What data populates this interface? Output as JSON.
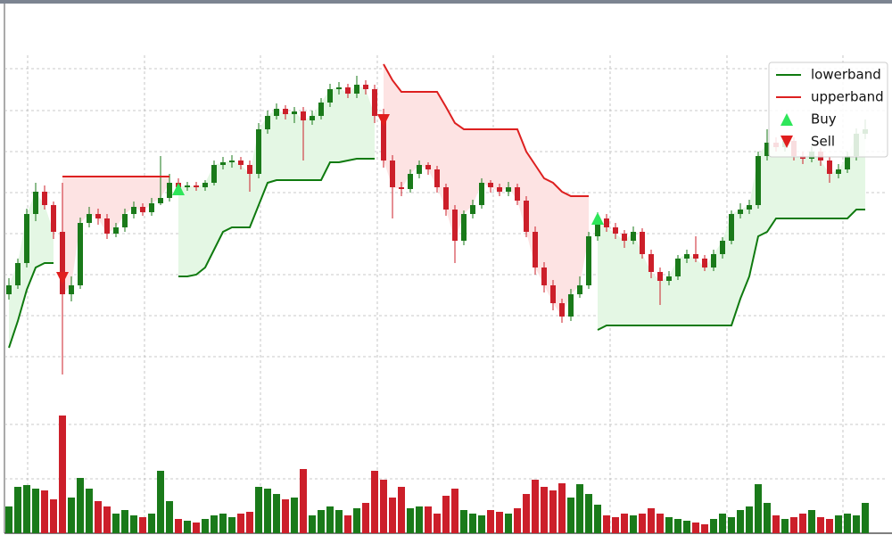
{
  "chart_data": {
    "type": "candlestick",
    "ohlc": [
      [
        270,
        288,
        264,
        280
      ],
      [
        280,
        310,
        276,
        305
      ],
      [
        305,
        366,
        300,
        360
      ],
      [
        360,
        395,
        352,
        385
      ],
      [
        385,
        392,
        365,
        370
      ],
      [
        370,
        374,
        332,
        340
      ],
      [
        340,
        395,
        180,
        270
      ],
      [
        270,
        290,
        262,
        280
      ],
      [
        280,
        356,
        276,
        350
      ],
      [
        350,
        368,
        345,
        360
      ],
      [
        360,
        366,
        348,
        355
      ],
      [
        355,
        360,
        332,
        338
      ],
      [
        338,
        350,
        334,
        345
      ],
      [
        345,
        366,
        340,
        360
      ],
      [
        360,
        374,
        355,
        368
      ],
      [
        368,
        372,
        358,
        362
      ],
      [
        362,
        378,
        358,
        372
      ],
      [
        372,
        425,
        370,
        378
      ],
      [
        378,
        405,
        374,
        395
      ],
      [
        395,
        400,
        384,
        390
      ],
      [
        390,
        396,
        386,
        392
      ],
      [
        392,
        396,
        386,
        390
      ],
      [
        390,
        398,
        386,
        395
      ],
      [
        395,
        420,
        392,
        415
      ],
      [
        415,
        424,
        410,
        418
      ],
      [
        418,
        426,
        412,
        420
      ],
      [
        420,
        424,
        410,
        415
      ],
      [
        415,
        420,
        385,
        405
      ],
      [
        405,
        462,
        400,
        455
      ],
      [
        455,
        476,
        450,
        470
      ],
      [
        470,
        484,
        466,
        478
      ],
      [
        478,
        482,
        466,
        472
      ],
      [
        472,
        480,
        462,
        475
      ],
      [
        475,
        480,
        420,
        465
      ],
      [
        465,
        476,
        460,
        470
      ],
      [
        470,
        490,
        466,
        485
      ],
      [
        485,
        506,
        480,
        500
      ],
      [
        500,
        508,
        494,
        502
      ],
      [
        502,
        506,
        490,
        495
      ],
      [
        495,
        515,
        490,
        505
      ],
      [
        505,
        510,
        494,
        500
      ],
      [
        500,
        505,
        462,
        470
      ],
      [
        470,
        478,
        412,
        420
      ],
      [
        420,
        426,
        355,
        390
      ],
      [
        390,
        396,
        380,
        388
      ],
      [
        388,
        410,
        384,
        405
      ],
      [
        405,
        420,
        400,
        415
      ],
      [
        415,
        418,
        404,
        410
      ],
      [
        410,
        414,
        384,
        390
      ],
      [
        390,
        394,
        358,
        365
      ],
      [
        365,
        370,
        305,
        330
      ],
      [
        330,
        364,
        325,
        360
      ],
      [
        360,
        376,
        355,
        370
      ],
      [
        370,
        400,
        366,
        395
      ],
      [
        395,
        398,
        384,
        390
      ],
      [
        390,
        394,
        380,
        385
      ],
      [
        385,
        396,
        380,
        390
      ],
      [
        390,
        394,
        370,
        375
      ],
      [
        375,
        380,
        334,
        340
      ],
      [
        340,
        346,
        292,
        300
      ],
      [
        300,
        306,
        272,
        280
      ],
      [
        280,
        286,
        252,
        260
      ],
      [
        260,
        265,
        238,
        245
      ],
      [
        245,
        276,
        240,
        270
      ],
      [
        270,
        290,
        266,
        280
      ],
      [
        280,
        340,
        276,
        335
      ],
      [
        335,
        362,
        330,
        355
      ],
      [
        355,
        360,
        340,
        345
      ],
      [
        345,
        350,
        332,
        338
      ],
      [
        338,
        342,
        322,
        330
      ],
      [
        330,
        346,
        326,
        340
      ],
      [
        340,
        344,
        310,
        315
      ],
      [
        315,
        320,
        288,
        295
      ],
      [
        295,
        300,
        258,
        285
      ],
      [
        285,
        296,
        280,
        290
      ],
      [
        290,
        314,
        286,
        310
      ],
      [
        310,
        320,
        305,
        315
      ],
      [
        315,
        335,
        306,
        310
      ],
      [
        310,
        314,
        296,
        300
      ],
      [
        300,
        320,
        296,
        315
      ],
      [
        315,
        334,
        310,
        330
      ],
      [
        330,
        364,
        326,
        360
      ],
      [
        360,
        372,
        355,
        365
      ],
      [
        365,
        376,
        360,
        370
      ],
      [
        370,
        430,
        366,
        425
      ],
      [
        425,
        455,
        420,
        440
      ],
      [
        440,
        446,
        430,
        435
      ],
      [
        435,
        448,
        430,
        442
      ],
      [
        442,
        446,
        420,
        425
      ],
      [
        425,
        430,
        416,
        422
      ],
      [
        422,
        436,
        418,
        430
      ],
      [
        430,
        434,
        414,
        420
      ],
      [
        420,
        424,
        395,
        405
      ],
      [
        405,
        416,
        400,
        410
      ],
      [
        410,
        430,
        406,
        425
      ],
      [
        425,
        456,
        420,
        450
      ],
      [
        450,
        466,
        444,
        455
      ]
    ],
    "up_color": "#1a7a1a",
    "down_color": "#cc1f2a",
    "xlim": [
      -0.5,
      98.5
    ],
    "xticks": [
      2.1,
      15.2,
      28.2,
      41.3,
      54.3,
      67.4,
      80.5,
      93.5
    ],
    "ylim": [
      170,
      540
    ],
    "yticks": [
      200,
      246,
      292,
      338,
      384,
      430,
      476,
      523
    ],
    "grid": true,
    "legend": "upper right",
    "series": [
      {
        "name": "lowerband",
        "color": "#0f7a0f",
        "fill": "#e4f7e4",
        "values": [
          210,
          240,
          275,
          300,
          305,
          305,
          null,
          null,
          null,
          null,
          null,
          null,
          null,
          null,
          null,
          null,
          null,
          null,
          null,
          290,
          290,
          292,
          300,
          320,
          340,
          345,
          345,
          345,
          370,
          395,
          398,
          398,
          398,
          398,
          398,
          398,
          418,
          418,
          420,
          422,
          422,
          422,
          null,
          null,
          null,
          null,
          null,
          null,
          null,
          null,
          null,
          null,
          null,
          null,
          null,
          null,
          null,
          null,
          null,
          null,
          null,
          null,
          null,
          null,
          null,
          null,
          230,
          235,
          235,
          235,
          235,
          235,
          235,
          235,
          235,
          235,
          235,
          235,
          235,
          235,
          235,
          235,
          265,
          290,
          335,
          340,
          355,
          355,
          355,
          355,
          355,
          355,
          355,
          355,
          355,
          365,
          365
        ]
      },
      {
        "name": "upperband",
        "color": "#dd2020",
        "fill": "#fde3e3",
        "values": [
          null,
          null,
          null,
          null,
          null,
          null,
          402,
          402,
          402,
          402,
          402,
          402,
          402,
          402,
          402,
          402,
          402,
          402,
          402,
          null,
          null,
          null,
          null,
          null,
          null,
          null,
          null,
          null,
          null,
          null,
          null,
          null,
          null,
          null,
          null,
          null,
          null,
          null,
          null,
          null,
          null,
          null,
          528,
          510,
          497,
          497,
          497,
          497,
          497,
          480,
          462,
          455,
          455,
          455,
          455,
          455,
          455,
          455,
          430,
          415,
          400,
          395,
          385,
          380,
          380,
          380,
          null,
          null,
          null,
          null,
          null,
          null,
          null,
          null,
          null,
          null,
          null,
          null,
          null,
          null,
          null,
          null,
          null,
          null,
          null,
          null,
          null,
          null,
          null,
          null,
          null,
          null,
          null,
          null,
          null,
          null,
          null
        ]
      }
    ],
    "signals": [
      {
        "name": "Buy",
        "color": "#2ee65a",
        "x": [
          19,
          66
        ],
        "values": [
          388,
          355
        ]
      },
      {
        "name": "Sell",
        "color": "#e01e1e",
        "x": [
          6,
          42
        ],
        "values": [
          288,
          465
        ]
      }
    ],
    "volume": {
      "ylim": [
        0,
        140
      ],
      "yticks": [
        61,
        122
      ],
      "values": [
        30,
        52,
        54,
        50,
        48,
        38,
        132,
        40,
        62,
        50,
        36,
        30,
        22,
        26,
        20,
        18,
        22,
        70,
        36,
        16,
        14,
        12,
        16,
        20,
        22,
        18,
        22,
        24,
        52,
        50,
        44,
        38,
        40,
        72,
        20,
        26,
        30,
        26,
        20,
        28,
        34,
        70,
        60,
        40,
        52,
        28,
        30,
        30,
        22,
        42,
        50,
        26,
        22,
        20,
        26,
        24,
        22,
        28,
        44,
        60,
        52,
        48,
        56,
        40,
        55,
        44,
        32,
        20,
        18,
        22,
        20,
        22,
        28,
        22,
        18,
        16,
        14,
        12,
        10,
        16,
        22,
        18,
        26,
        30,
        55,
        34,
        20,
        16,
        18,
        22,
        26,
        18,
        16,
        20,
        22,
        20,
        34
      ]
    }
  }
}
